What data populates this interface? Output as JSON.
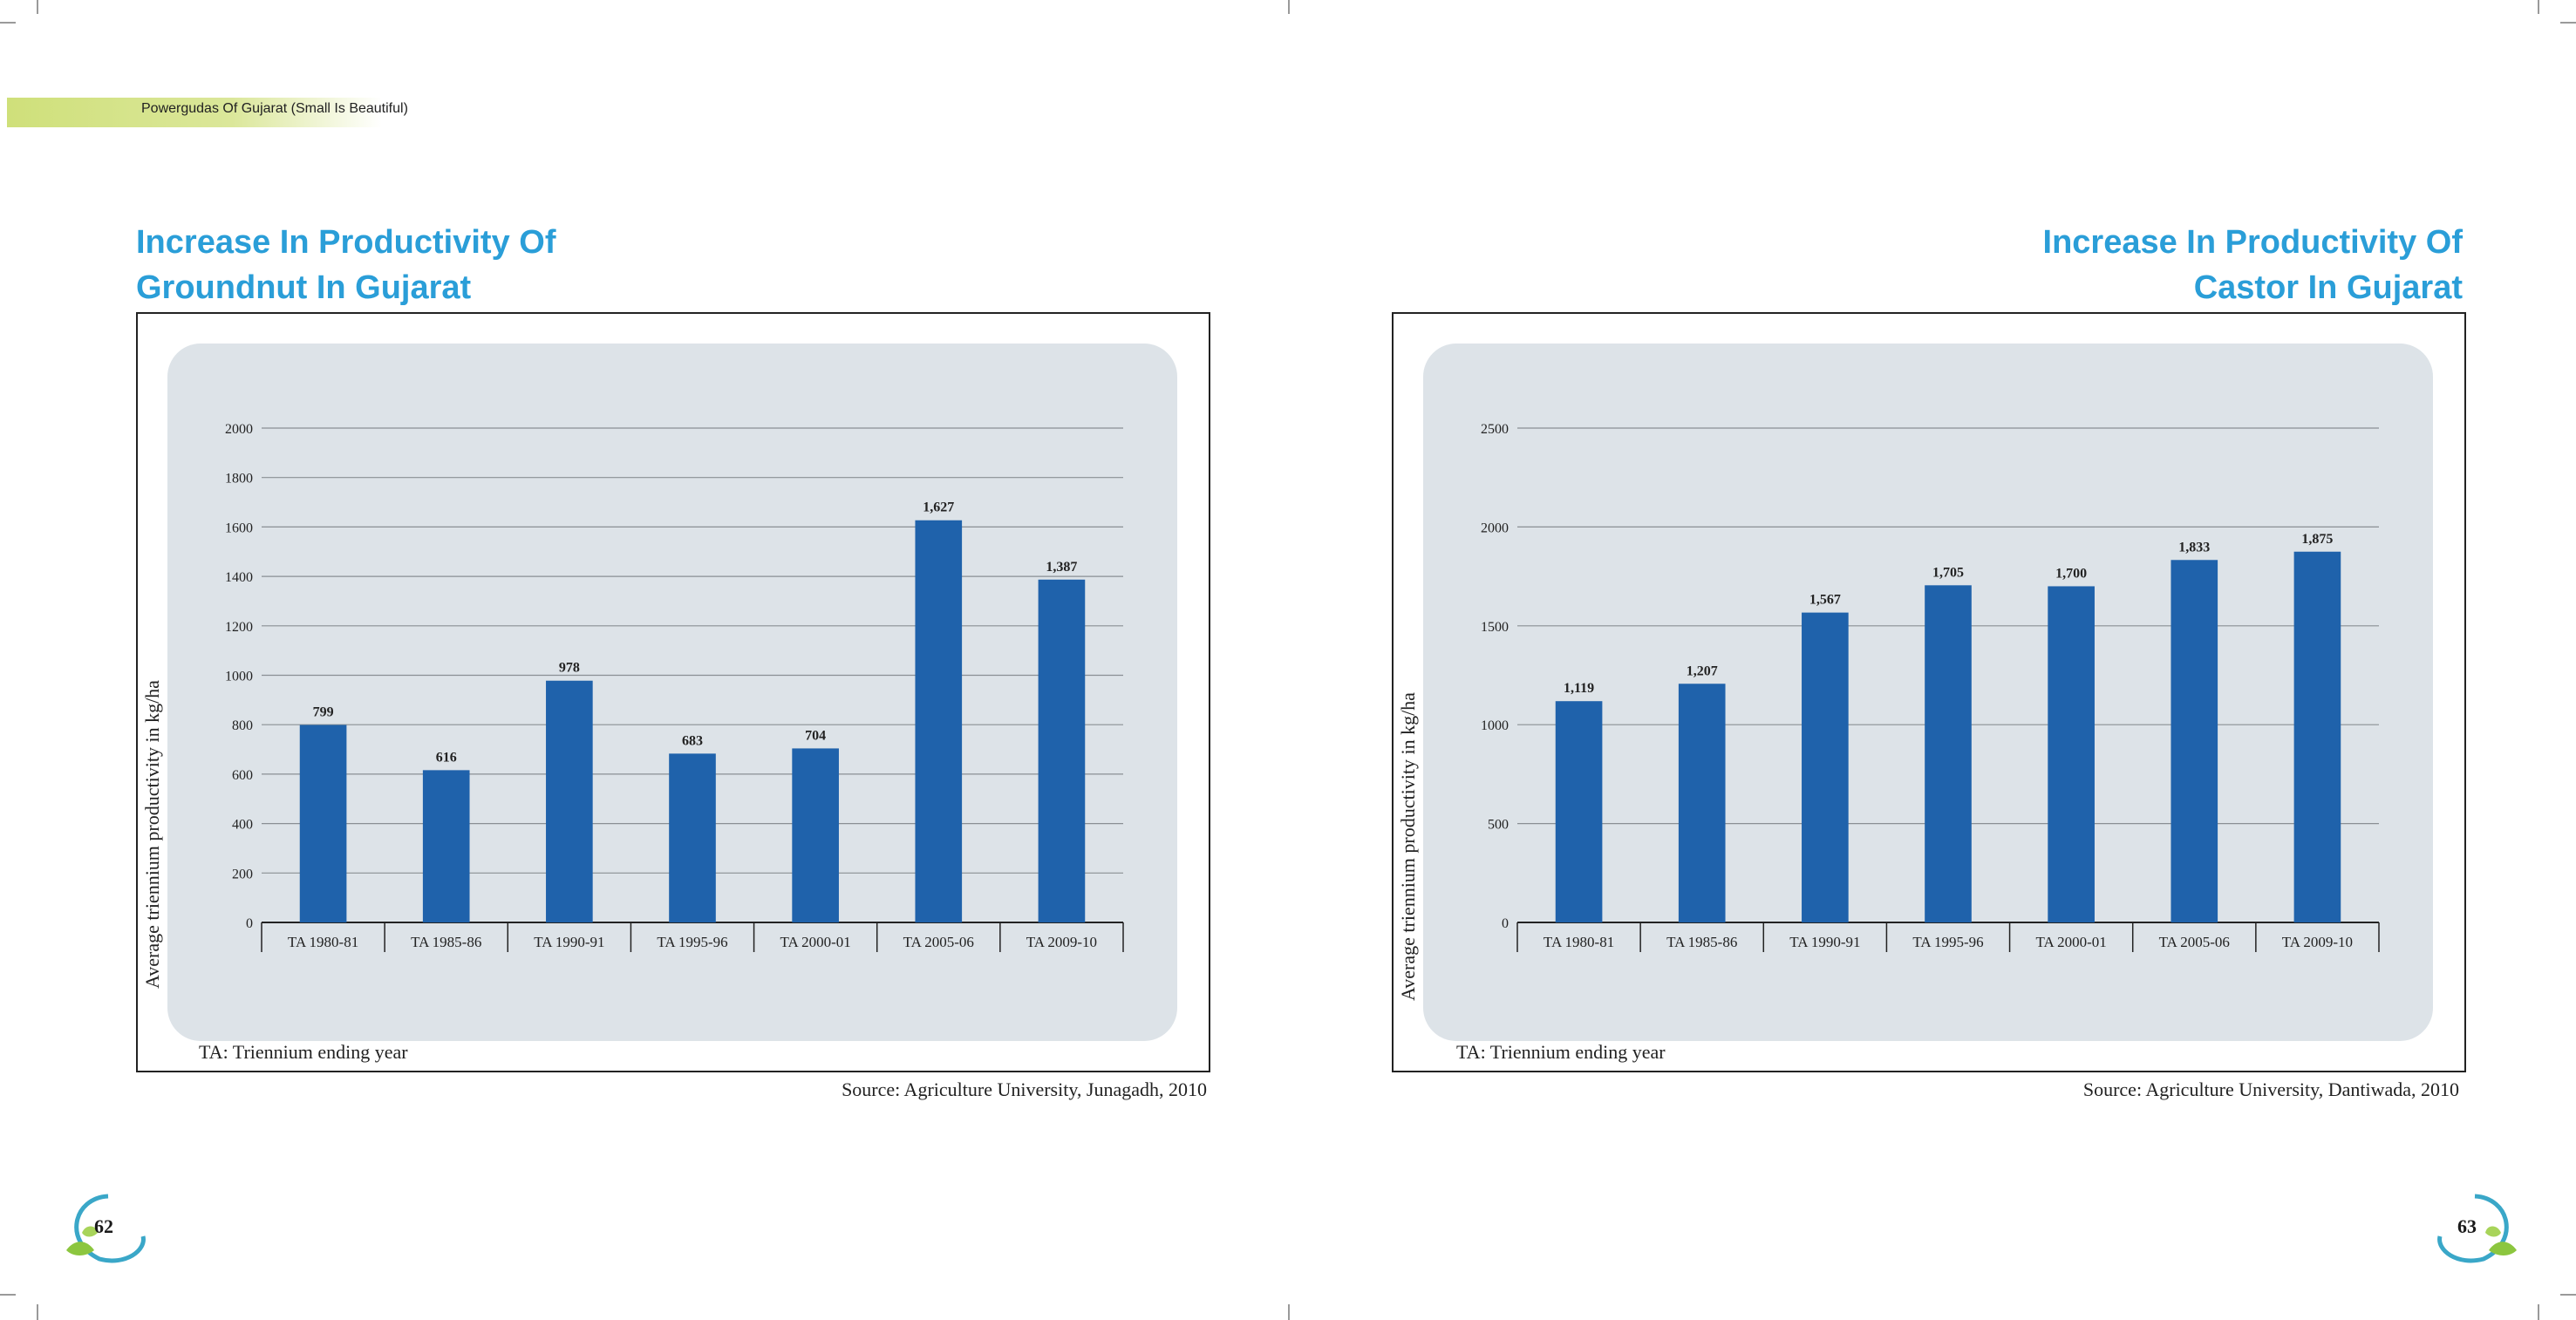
{
  "header": {
    "running_title": "Powergudas Of Gujarat (Small Is Beautiful)"
  },
  "pages": {
    "left": {
      "title_line1": "Increase In Productivity Of",
      "title_line2": "Groundnut In Gujarat",
      "note": "TA: Triennium ending year",
      "source": "Source: Agriculture University, Junagadh, 2010",
      "page_number": "62"
    },
    "right": {
      "title_line1": "Increase In Productivity Of",
      "title_line2": "Castor In Gujarat",
      "note": "TA: Triennium ending year",
      "source": "Source: Agriculture University, Dantiwada, 2010",
      "page_number": "63"
    }
  },
  "colors": {
    "bar": "#1f62ab",
    "title": "#2a9ed8",
    "panel": "#dde3e8"
  },
  "icons": [
    "leaf-swirl-icon"
  ],
  "chart_data": [
    {
      "type": "bar",
      "title": "Increase In Productivity Of Groundnut In Gujarat",
      "categories": [
        "TA 1980-81",
        "TA 1985-86",
        "TA 1990-91",
        "TA 1995-96",
        "TA 2000-01",
        "TA 2005-06",
        "TA 2009-10"
      ],
      "values": [
        799,
        616,
        978,
        683,
        704,
        1627,
        1387
      ],
      "data_labels": [
        "799",
        "616",
        "978",
        "683",
        "704",
        "1,627",
        "1,387"
      ],
      "ylabel": "Average triennium productivity in kg/ha",
      "xlabel": "",
      "ylim": [
        0,
        2000
      ],
      "yticks": [
        0,
        200,
        400,
        600,
        800,
        1000,
        1200,
        1400,
        1600,
        1800,
        2000
      ],
      "grid": true
    },
    {
      "type": "bar",
      "title": "Increase In Productivity Of Castor In Gujarat",
      "categories": [
        "TA 1980-81",
        "TA 1985-86",
        "TA 1990-91",
        "TA 1995-96",
        "TA 2000-01",
        "TA 2005-06",
        "TA 2009-10"
      ],
      "values": [
        1119,
        1207,
        1567,
        1705,
        1700,
        1833,
        1875
      ],
      "data_labels": [
        "1,119",
        "1,207",
        "1,567",
        "1,705",
        "1,700",
        "1,833",
        "1,875"
      ],
      "ylabel": "Average triennium productivity in kg/ha",
      "xlabel": "",
      "ylim": [
        0,
        2500
      ],
      "yticks": [
        0,
        500,
        1000,
        1500,
        2000,
        2500
      ],
      "grid": true
    }
  ]
}
